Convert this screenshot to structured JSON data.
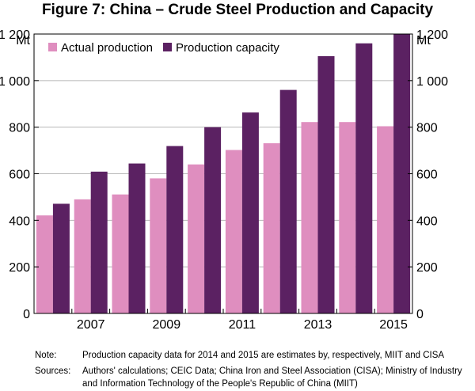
{
  "title": "Figure 7: China – Crude Steel Production and Capacity",
  "chart_data": {
    "type": "bar",
    "unit_left": "Mt",
    "unit_right": "Mt",
    "categories": [
      "2006",
      "2007",
      "2008",
      "2009",
      "2010",
      "2011",
      "2012",
      "2013",
      "2014",
      "2015"
    ],
    "x_tick_labels": [
      "2007",
      "2009",
      "2011",
      "2013",
      "2015"
    ],
    "series": [
      {
        "name": "Actual production",
        "color": "#df8ebf",
        "values": [
          421,
          490,
          511,
          580,
          640,
          702,
          731,
          822,
          822,
          804
        ]
      },
      {
        "name": "Production capacity",
        "color": "#5b2162",
        "values": [
          471,
          609,
          644,
          719,
          800,
          863,
          960,
          1105,
          1160,
          1200
        ]
      }
    ],
    "ylim": [
      0,
      1200
    ],
    "y_ticks": [
      0,
      200,
      400,
      600,
      800,
      1000,
      1200
    ],
    "y_tick_labels": [
      "0",
      "200",
      "400",
      "600",
      "800",
      "1 000",
      "1 200"
    ],
    "legend_position": "top-left",
    "grid": true
  },
  "notes": {
    "note_label": "Note:",
    "note_text": "Production capacity data for 2014 and 2015 are estimates by, respectively, MIIT and CISA",
    "sources_label": "Sources:",
    "sources_line1": "Authors' calculations; CEIC Data; China Iron and Steel Association (CISA); Ministry of Industry",
    "sources_line2": "and Information Technology of the People's Republic of China (MIIT)"
  }
}
